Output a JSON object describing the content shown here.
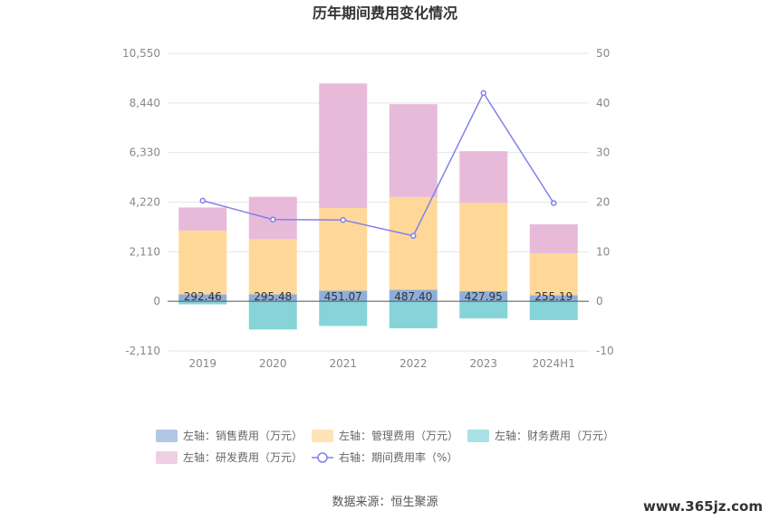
{
  "chart_data": {
    "type": "bar",
    "title": "历年期间费用变化情况",
    "categories": [
      "2019",
      "2020",
      "2021",
      "2022",
      "2023",
      "2024H1"
    ],
    "left_axis": {
      "min": -2110,
      "max": 10550,
      "ticks": [
        "10,550",
        "8,440",
        "6,330",
        "4,220",
        "2,110",
        "0",
        "-2,110"
      ]
    },
    "right_axis": {
      "min": -10,
      "max": 50,
      "ticks": [
        "50",
        "40",
        "30",
        "20",
        "10",
        "0",
        "-10"
      ]
    },
    "series": [
      {
        "name": "左轴：销售费用（万元）",
        "axis": "left",
        "stack": true,
        "color": "#8eafdb",
        "values": [
          292.46,
          295.48,
          451.07,
          487.4,
          427.95,
          255.19
        ],
        "labels": [
          "292.46",
          "295.48",
          "451.07",
          "487.40",
          "427.95",
          "255.19"
        ]
      },
      {
        "name": "左轴：管理费用（万元）",
        "axis": "left",
        "stack": true,
        "color": "#ffd899",
        "values": [
          2720,
          2350,
          3520,
          3950,
          3760,
          1790
        ]
      },
      {
        "name": "左轴：财务费用（万元）",
        "axis": "left",
        "stack": true,
        "color": "#86d4d8",
        "values": [
          -130,
          -1200,
          -1050,
          -1150,
          -730,
          -800
        ]
      },
      {
        "name": "左轴：研发费用（万元）",
        "axis": "left",
        "stack": true,
        "color": "#e8bad9",
        "values": [
          980,
          1800,
          5300,
          3950,
          2200,
          1230
        ]
      },
      {
        "name": "右轴：期间费用率（%）",
        "axis": "right",
        "type": "line",
        "color": "#8080ee",
        "values": [
          20.3,
          16.5,
          16.4,
          13.2,
          42.0,
          19.8
        ]
      }
    ],
    "legend_position": "bottom",
    "grid": true
  },
  "source_text": "数据来源：恒生聚源",
  "watermark": "www.365jz.com"
}
